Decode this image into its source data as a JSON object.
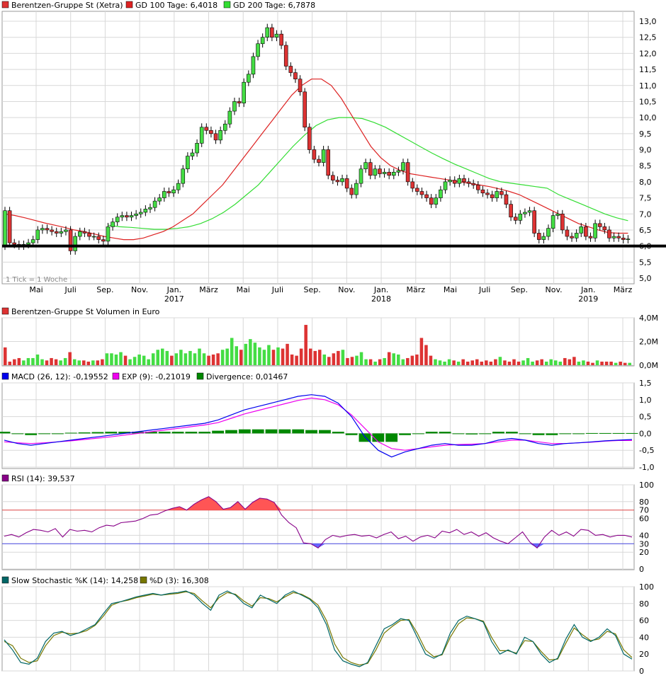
{
  "colors": {
    "up": "#44dd44",
    "down": "#dd3333",
    "gd100": "#dd2222",
    "gd200": "#33dd33",
    "macd": "#0000ee",
    "exp": "#ee00ee",
    "divergence": "#008800",
    "rsi": "#880088",
    "rsi_fill": "#ff5555",
    "k": "#006666",
    "d": "#777700",
    "grid": "#d8d8d8"
  },
  "legend": {
    "price": "Berentzen-Gruppe St (Xetra)",
    "gd100": "GD 100 Tage: 6,4018",
    "gd200": "GD 200 Tage: 6,7878",
    "volume": "Berentzen-Gruppe St Volumen in Euro",
    "macd": "MACD (26, 12): -0,19552",
    "exp": "EXP (9): -0,21019",
    "divergence": "Divergence: 0,01467",
    "rsi": "RSI (14): 39,537",
    "stoch_k": "Slow Stochastic %K (14): 14,258",
    "stoch_d": "%D (3): 16,308"
  },
  "note": "1 Tick = 1 Woche",
  "x_axis": {
    "months": [
      "Mai",
      "Juli",
      "Sep.",
      "Nov.",
      "Jan.",
      "März",
      "Mai",
      "Juli",
      "Sep.",
      "Nov.",
      "Jan.",
      "März",
      "Mai",
      "Juli",
      "Sep.",
      "Nov.",
      "Jan.",
      "März"
    ],
    "years": [
      "2017",
      "2018",
      "2019"
    ]
  },
  "axes": {
    "price_ticks": [
      "13,0",
      "12,5",
      "12,0",
      "11,5",
      "11,0",
      "10,5",
      "10,0",
      "9,5",
      "9,0",
      "8,5",
      "8,0",
      "7,5",
      "7,0",
      "6,5",
      "6,0",
      "5,5",
      "5,0"
    ],
    "volume_ticks": [
      "4,0M",
      "2,0M",
      "0,0M"
    ],
    "macd_ticks": [
      "1,5",
      "1,0",
      "0,5",
      "0,0",
      "-0,5",
      "-1,0"
    ],
    "rsi_ticks": [
      "100",
      "80",
      "70",
      "60",
      "40",
      "30",
      "20",
      "0"
    ],
    "stoch_ticks": [
      "100",
      "80",
      "60",
      "40",
      "20",
      "0"
    ]
  },
  "chart_data": [
    {
      "type": "candlestick",
      "title": "Berentzen-Gruppe St (Xetra)",
      "interval": "1 Woche",
      "ylim": [
        5.0,
        13.1
      ],
      "support_line": 6.0,
      "close": [
        7.1,
        6.1,
        6.05,
        6.0,
        6.05,
        6.1,
        6.2,
        6.5,
        6.55,
        6.5,
        6.45,
        6.4,
        6.45,
        6.5,
        5.85,
        6.3,
        6.45,
        6.4,
        6.3,
        6.3,
        6.2,
        6.15,
        6.6,
        6.75,
        6.9,
        6.95,
        6.9,
        6.95,
        7.0,
        7.05,
        7.15,
        7.2,
        7.4,
        7.5,
        7.7,
        7.65,
        7.75,
        7.95,
        8.4,
        8.8,
        8.9,
        9.2,
        9.7,
        9.6,
        9.5,
        9.3,
        9.6,
        9.8,
        10.2,
        10.5,
        10.45,
        11.1,
        11.35,
        11.9,
        12.3,
        12.5,
        12.8,
        12.5,
        12.6,
        12.25,
        11.6,
        11.4,
        11.2,
        10.8,
        9.7,
        9.0,
        8.7,
        8.6,
        9.0,
        8.2,
        8.05,
        8.0,
        8.1,
        7.8,
        7.6,
        7.95,
        8.4,
        8.6,
        8.2,
        8.4,
        8.25,
        8.3,
        8.2,
        8.3,
        8.35,
        8.6,
        8.0,
        7.8,
        7.7,
        7.6,
        7.5,
        7.3,
        7.5,
        7.75,
        8.0,
        8.05,
        7.95,
        8.1,
        8.0,
        7.95,
        7.9,
        7.75,
        7.65,
        7.6,
        7.5,
        7.7,
        7.6,
        7.3,
        6.9,
        6.8,
        7.0,
        7.05,
        7.1,
        6.4,
        6.2,
        6.3,
        6.55,
        6.95,
        7.0,
        6.5,
        6.3,
        6.25,
        6.4,
        6.6,
        6.3,
        6.25,
        6.7,
        6.6,
        6.5,
        6.25,
        6.3,
        6.25,
        6.2,
        6.22
      ]
    },
    {
      "type": "line",
      "name": "GD 100 Tage",
      "current": 6.4018,
      "values": [
        7.0,
        6.95,
        6.88,
        6.8,
        6.72,
        6.65,
        6.58,
        6.5,
        6.45,
        6.38,
        6.3,
        6.25,
        6.2,
        6.2,
        6.25,
        6.35,
        6.45,
        6.6,
        6.8,
        7.0,
        7.3,
        7.6,
        7.9,
        8.3,
        8.7,
        9.1,
        9.5,
        9.9,
        10.3,
        10.7,
        11.0,
        11.2,
        11.2,
        11.0,
        10.6,
        10.1,
        9.6,
        9.1,
        8.75,
        8.5,
        8.35,
        8.25,
        8.2,
        8.15,
        8.1,
        8.05,
        8.0,
        7.95,
        7.9,
        7.85,
        7.78,
        7.7,
        7.6,
        7.45,
        7.3,
        7.15,
        7.0,
        6.85,
        6.7,
        6.6,
        6.5,
        6.42,
        6.4,
        6.4
      ],
      "x_start_week": 0
    },
    {
      "type": "line",
      "name": "GD 200 Tage",
      "current": 6.7878,
      "values": [
        6.65,
        6.6,
        6.58,
        6.55,
        6.52,
        6.52,
        6.55,
        6.6,
        6.7,
        6.85,
        7.05,
        7.3,
        7.6,
        7.9,
        8.3,
        8.7,
        9.1,
        9.45,
        9.75,
        9.93,
        10.0,
        10.0,
        9.97,
        9.85,
        9.7,
        9.5,
        9.3,
        9.1,
        8.9,
        8.72,
        8.55,
        8.4,
        8.25,
        8.1,
        8.0,
        7.95,
        7.9,
        7.85,
        7.8,
        7.6,
        7.45,
        7.3,
        7.15,
        7.0,
        6.88,
        6.79
      ],
      "x_start_week": 22
    },
    {
      "type": "bar",
      "title": "Berentzen-Gruppe St Volumen in Euro",
      "unit": "M EUR",
      "ylim": [
        0,
        4.0
      ],
      "values": [
        1.5,
        0.3,
        0.5,
        0.6,
        0.4,
        0.6,
        0.6,
        0.9,
        0.5,
        0.4,
        0.6,
        0.5,
        0.4,
        0.6,
        1.1,
        0.5,
        0.4,
        0.4,
        0.3,
        0.4,
        0.4,
        0.5,
        1.0,
        1.0,
        0.9,
        1.1,
        0.8,
        0.5,
        0.7,
        0.9,
        0.8,
        0.5,
        1.0,
        1.3,
        1.4,
        1.2,
        0.8,
        1.0,
        1.3,
        1.0,
        1.2,
        1.0,
        1.4,
        1.0,
        0.8,
        0.9,
        1.0,
        1.3,
        1.4,
        2.3,
        1.6,
        1.3,
        1.8,
        2.2,
        1.9,
        1.5,
        1.3,
        1.7,
        1.3,
        1.5,
        1.4,
        1.8,
        0.9,
        0.8,
        1.4,
        3.4,
        1.4,
        1.2,
        1.3,
        0.9,
        0.7,
        1.0,
        1.2,
        1.3,
        0.6,
        0.7,
        0.8,
        1.1,
        0.5,
        0.5,
        0.3,
        0.5,
        0.6,
        1.1,
        1.0,
        0.9,
        0.5,
        0.6,
        0.8,
        0.9,
        2.3,
        1.7,
        0.8,
        0.5,
        0.4,
        0.3,
        0.5,
        0.4,
        0.3,
        0.5,
        0.3,
        0.4,
        0.5,
        0.3,
        0.4,
        0.3,
        0.5,
        0.7,
        0.4,
        0.3,
        0.5,
        0.3,
        0.4,
        0.6,
        0.3,
        0.4,
        0.5,
        0.3,
        0.5,
        0.4,
        0.3,
        0.6,
        0.5,
        0.7,
        0.3,
        0.4,
        0.3,
        0.2,
        0.4,
        0.3,
        0.3,
        0.3,
        0.2,
        0.3,
        0.2,
        0.2
      ]
    },
    {
      "type": "line",
      "title": "MACD",
      "ylim": [
        -1.0,
        1.5
      ],
      "macd": [
        -0.2,
        -0.3,
        -0.35,
        -0.3,
        -0.25,
        -0.2,
        -0.15,
        -0.1,
        -0.05,
        0.0,
        0.05,
        0.1,
        0.15,
        0.2,
        0.25,
        0.3,
        0.4,
        0.55,
        0.7,
        0.8,
        0.9,
        1.0,
        1.1,
        1.15,
        1.1,
        0.9,
        0.5,
        -0.1,
        -0.5,
        -0.7,
        -0.55,
        -0.45,
        -0.35,
        -0.3,
        -0.35,
        -0.35,
        -0.3,
        -0.2,
        -0.15,
        -0.2,
        -0.3,
        -0.35,
        -0.3,
        -0.28,
        -0.25,
        -0.22,
        -0.2,
        -0.18
      ],
      "exp": [
        -0.25,
        -0.28,
        -0.3,
        -0.28,
        -0.25,
        -0.22,
        -0.18,
        -0.14,
        -0.1,
        -0.05,
        0.0,
        0.05,
        0.1,
        0.15,
        0.2,
        0.25,
        0.32,
        0.45,
        0.58,
        0.68,
        0.78,
        0.88,
        0.98,
        1.05,
        1.0,
        0.85,
        0.55,
        0.15,
        -0.25,
        -0.45,
        -0.5,
        -0.45,
        -0.4,
        -0.35,
        -0.33,
        -0.32,
        -0.3,
        -0.25,
        -0.2,
        -0.2,
        -0.25,
        -0.3,
        -0.3,
        -0.28,
        -0.26,
        -0.23,
        -0.21,
        -0.21
      ],
      "divergence": [
        0.05,
        -0.02,
        -0.05,
        -0.02,
        0.0,
        0.02,
        0.03,
        0.04,
        0.05,
        0.05,
        0.05,
        0.05,
        0.05,
        0.05,
        0.05,
        0.05,
        0.08,
        0.1,
        0.12,
        0.12,
        0.12,
        0.12,
        0.12,
        0.1,
        0.1,
        0.05,
        -0.05,
        -0.25,
        -0.25,
        -0.25,
        -0.05,
        0.0,
        0.05,
        0.05,
        -0.02,
        -0.03,
        0.0,
        0.05,
        0.05,
        0.0,
        -0.05,
        -0.05,
        0.0,
        0.0,
        0.01,
        0.01,
        0.01,
        0.01
      ]
    },
    {
      "type": "line",
      "title": "RSI (14)",
      "ylim": [
        0,
        100
      ],
      "levels": [
        30,
        70
      ],
      "values": [
        39,
        41,
        38,
        43,
        47,
        46,
        44,
        48,
        38,
        47,
        45,
        46,
        44,
        49,
        52,
        51,
        55,
        56,
        57,
        60,
        64,
        65,
        69,
        72,
        74,
        70,
        77,
        82,
        86,
        80,
        71,
        73,
        80,
        71,
        79,
        84,
        83,
        79,
        64,
        55,
        49,
        31,
        30,
        25,
        35,
        40,
        38,
        40,
        41,
        39,
        40,
        37,
        41,
        44,
        36,
        39,
        33,
        38,
        40,
        37,
        45,
        43,
        47,
        41,
        44,
        39,
        43,
        37,
        33,
        30,
        37,
        44,
        32,
        25,
        38,
        46,
        40,
        44,
        39,
        47,
        46,
        40,
        41,
        38,
        40,
        40,
        38
      ]
    },
    {
      "type": "line",
      "title": "Slow Stochastic",
      "ylim": [
        0,
        100
      ],
      "k": [
        37,
        25,
        10,
        8,
        15,
        35,
        45,
        47,
        42,
        45,
        50,
        55,
        68,
        80,
        82,
        85,
        88,
        90,
        92,
        90,
        92,
        93,
        95,
        90,
        80,
        72,
        90,
        95,
        90,
        80,
        75,
        90,
        85,
        80,
        90,
        95,
        90,
        85,
        75,
        55,
        25,
        12,
        8,
        5,
        10,
        30,
        50,
        55,
        62,
        60,
        40,
        20,
        15,
        20,
        45,
        60,
        65,
        62,
        58,
        35,
        20,
        25,
        20,
        40,
        35,
        20,
        10,
        15,
        38,
        55,
        40,
        35,
        40,
        50,
        42,
        20,
        14
      ],
      "d": [
        35,
        30,
        15,
        10,
        12,
        30,
        42,
        46,
        44,
        45,
        48,
        54,
        65,
        78,
        82,
        84,
        87,
        89,
        91,
        90,
        91,
        92,
        94,
        92,
        83,
        75,
        87,
        93,
        91,
        83,
        77,
        87,
        86,
        82,
        88,
        93,
        91,
        86,
        78,
        60,
        32,
        16,
        10,
        7,
        9,
        25,
        45,
        53,
        60,
        61,
        45,
        25,
        17,
        19,
        40,
        56,
        63,
        62,
        59,
        40,
        24,
        24,
        21,
        36,
        35,
        23,
        13,
        14,
        33,
        51,
        43,
        36,
        38,
        47,
        44,
        25,
        16
      ]
    }
  ]
}
